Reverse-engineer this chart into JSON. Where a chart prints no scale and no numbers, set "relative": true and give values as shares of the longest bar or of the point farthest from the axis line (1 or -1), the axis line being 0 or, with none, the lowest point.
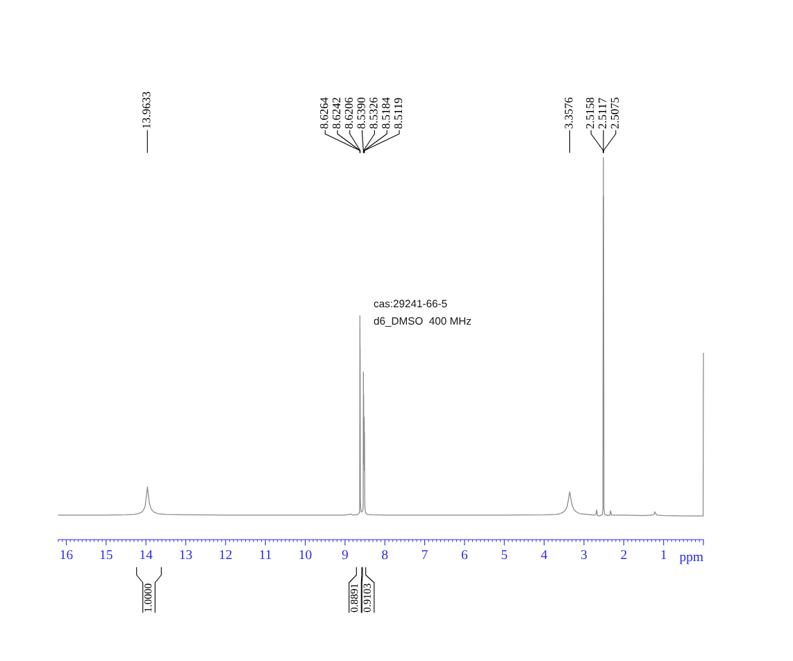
{
  "chart_data": {
    "type": "line",
    "relative": true,
    "xlim": [
      16.2,
      0
    ],
    "xticks": [
      16,
      15,
      14,
      13,
      12,
      11,
      10,
      9,
      8,
      7,
      6,
      5,
      4,
      3,
      2,
      1,
      {
        "value": 0,
        "label": null
      }
    ],
    "xlabel": "ppm",
    "series": [
      {
        "color": "#888888",
        "x": [
          16.2,
          15.0,
          14.5,
          14.3,
          14.2,
          14.12,
          14.06,
          14.02,
          13.99,
          13.9633,
          13.94,
          13.91,
          13.87,
          13.8,
          13.7,
          13.5,
          13.0,
          12.0,
          11.0,
          10.0,
          9.0,
          8.85,
          8.8,
          8.72,
          8.68,
          8.64,
          8.632,
          8.6264,
          8.6253,
          8.6242,
          8.6224,
          8.6206,
          8.615,
          8.6,
          8.58,
          8.55,
          8.545,
          8.539,
          8.5358,
          8.5326,
          8.5255,
          8.5184,
          8.5152,
          8.5119,
          8.505,
          8.49,
          8.45,
          8.3,
          8.0,
          7.0,
          6.0,
          5.0,
          4.0,
          3.7,
          3.6,
          3.52,
          3.46,
          3.42,
          3.39,
          3.3576,
          3.33,
          3.3,
          3.26,
          3.2,
          3.1,
          2.9,
          2.75,
          2.7,
          2.68,
          2.66,
          2.6,
          2.54,
          2.525,
          2.5158,
          2.5137,
          2.5117,
          2.5096,
          2.5075,
          2.498,
          2.48,
          2.4,
          2.35,
          2.33,
          2.31,
          2.0,
          1.5,
          1.3,
          1.24,
          1.22,
          1.2,
          1.16,
          1.0,
          0.5,
          0.1,
          0.008,
          0.0
        ],
        "values": [
          0.064,
          0.064,
          0.065,
          0.066,
          0.068,
          0.071,
          0.077,
          0.088,
          0.112,
          0.138,
          0.118,
          0.094,
          0.08,
          0.072,
          0.068,
          0.066,
          0.065,
          0.064,
          0.064,
          0.064,
          0.064,
          0.067,
          0.064,
          0.065,
          0.066,
          0.07,
          0.09,
          0.586,
          0.42,
          0.55,
          0.33,
          0.5,
          0.1,
          0.074,
          0.072,
          0.078,
          0.09,
          0.439,
          0.25,
          0.38,
          0.2,
          0.32,
          0.18,
          0.28,
          0.09,
          0.072,
          0.066,
          0.065,
          0.064,
          0.064,
          0.064,
          0.064,
          0.065,
          0.066,
          0.068,
          0.072,
          0.078,
          0.088,
          0.105,
          0.125,
          0.108,
          0.092,
          0.08,
          0.073,
          0.068,
          0.066,
          0.064,
          0.065,
          0.078,
          0.063,
          0.062,
          0.066,
          0.08,
          0.9,
          0.7,
          1.0,
          0.7,
          0.9,
          0.08,
          0.066,
          0.063,
          0.064,
          0.076,
          0.064,
          0.064,
          0.063,
          0.064,
          0.066,
          0.073,
          0.068,
          0.064,
          0.063,
          0.062,
          0.062,
          0.062,
          0.488
        ]
      }
    ],
    "annotations": [
      {
        "text": "13.9633",
        "x": 13.9633
      },
      {
        "text": "8.6264",
        "x": 8.6264
      },
      {
        "text": "8.6242",
        "x": 8.6242
      },
      {
        "text": "8.6206",
        "x": 8.6206
      },
      {
        "text": "8.5390",
        "x": 8.539
      },
      {
        "text": "8.5326",
        "x": 8.5326
      },
      {
        "text": "8.5184",
        "x": 8.5184
      },
      {
        "text": "8.5119",
        "x": 8.5119
      },
      {
        "text": "3.3576",
        "x": 3.3576
      },
      {
        "text": "2.5158",
        "x": 2.5158
      },
      {
        "text": "2.5117",
        "x": 2.5117
      },
      {
        "text": "2.5075",
        "x": 2.5075
      },
      "cas:29241-66-5",
      "d6_DMSO  400 MHz",
      "1.0000",
      "0.8891",
      "0.9103"
    ]
  }
}
